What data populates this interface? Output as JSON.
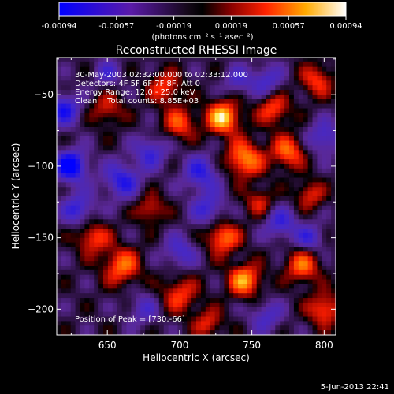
{
  "colorbar": {
    "tick_labels": [
      "-0.00094",
      "-0.00057",
      "-0.00019",
      "0.00019",
      "0.00057",
      "0.00094"
    ],
    "min": -0.00094,
    "max": 0.00094,
    "unit_label": "(photons cm⁻² s⁻¹ asec⁻²)"
  },
  "annotations": {
    "line1": "30-May-2003 02:32:00.000 to 02:33:12.000",
    "line2": "Detectors: 4F 5F 6F 7F 8F, Att 0",
    "line3": "Energy Range: 12.0 - 25.0 keV",
    "line4": "Clean    Total counts: 8.85E+03",
    "peak": "Position of Peak = [730,-66]"
  },
  "footer": {
    "timestamp": "5-Jun-2013 22:41"
  },
  "chart_data": {
    "type": "heatmap",
    "title": "Reconstructed RHESSI Image",
    "xlabel": "Heliocentric X (arcsec)",
    "ylabel": "Heliocentric Y (arcsec)",
    "xlim": [
      615,
      808
    ],
    "ylim": [
      -218,
      -24
    ],
    "xticks": [
      650,
      700,
      750,
      800
    ],
    "yticks": [
      -50,
      -100,
      -150,
      -200
    ],
    "xtick_labels": [
      "650",
      "700",
      "750",
      "800"
    ],
    "ytick_labels": [
      "−50",
      "−100",
      "−150",
      "−200"
    ],
    "colormap": "blue-purple-black-red-yellow-white",
    "peak_position": [
      730,
      -66
    ],
    "blobs": [
      {
        "x": 730,
        "y": -66,
        "v": 1.0,
        "s": 8
      },
      {
        "x": 745,
        "y": -95,
        "v": 0.82,
        "s": 9
      },
      {
        "x": 775,
        "y": -90,
        "v": 0.7,
        "s": 8
      },
      {
        "x": 700,
        "y": -70,
        "v": 0.6,
        "s": 8
      },
      {
        "x": 690,
        "y": -45,
        "v": 0.55,
        "s": 8
      },
      {
        "x": 650,
        "y": -60,
        "v": 0.45,
        "s": 8
      },
      {
        "x": 765,
        "y": -60,
        "v": 0.6,
        "s": 8
      },
      {
        "x": 795,
        "y": -40,
        "v": 0.55,
        "s": 8
      },
      {
        "x": 790,
        "y": -120,
        "v": 0.5,
        "s": 7
      },
      {
        "x": 640,
        "y": -150,
        "v": 0.6,
        "s": 8
      },
      {
        "x": 660,
        "y": -170,
        "v": 0.7,
        "s": 9
      },
      {
        "x": 700,
        "y": -190,
        "v": 0.55,
        "s": 9
      },
      {
        "x": 730,
        "y": -150,
        "v": 0.75,
        "s": 8
      },
      {
        "x": 745,
        "y": -180,
        "v": 0.85,
        "s": 8
      },
      {
        "x": 785,
        "y": -170,
        "v": 0.7,
        "s": 8
      },
      {
        "x": 800,
        "y": -200,
        "v": 0.65,
        "s": 8
      },
      {
        "x": 680,
        "y": -130,
        "v": 0.5,
        "s": 7
      },
      {
        "x": 755,
        "y": -125,
        "v": 0.45,
        "s": 7
      },
      {
        "x": 720,
        "y": -210,
        "v": 0.5,
        "s": 7
      },
      {
        "x": 625,
        "y": -100,
        "v": -0.95,
        "s": 8
      },
      {
        "x": 620,
        "y": -60,
        "v": -0.7,
        "s": 8
      },
      {
        "x": 630,
        "y": -130,
        "v": -0.6,
        "s": 8
      },
      {
        "x": 660,
        "y": -110,
        "v": -0.65,
        "s": 9
      },
      {
        "x": 680,
        "y": -90,
        "v": -0.55,
        "s": 8
      },
      {
        "x": 715,
        "y": -105,
        "v": -0.6,
        "s": 9
      },
      {
        "x": 720,
        "y": -130,
        "v": -0.55,
        "s": 8
      },
      {
        "x": 700,
        "y": -160,
        "v": -0.5,
        "s": 8
      },
      {
        "x": 770,
        "y": -140,
        "v": -0.55,
        "s": 8
      },
      {
        "x": 790,
        "y": -150,
        "v": -0.5,
        "s": 7
      },
      {
        "x": 760,
        "y": -40,
        "v": -0.5,
        "s": 8
      },
      {
        "x": 800,
        "y": -80,
        "v": -0.55,
        "s": 8
      },
      {
        "x": 740,
        "y": -40,
        "v": -0.4,
        "s": 7
      },
      {
        "x": 675,
        "y": -200,
        "v": -0.4,
        "s": 8
      },
      {
        "x": 760,
        "y": -205,
        "v": -0.45,
        "s": 8
      },
      {
        "x": 650,
        "y": -35,
        "v": -0.4,
        "s": 7
      }
    ]
  }
}
